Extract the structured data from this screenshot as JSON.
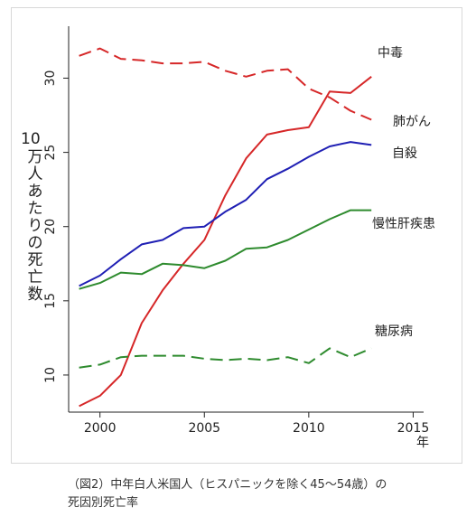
{
  "chart_data": {
    "type": "line",
    "xlabel": "年",
    "ylabel_top": "10",
    "ylabel": "万人あたりの死亡数",
    "xlim": [
      1998.5,
      2015.5
    ],
    "ylim": [
      7.5,
      33.5
    ],
    "x_ticks": [
      2000,
      2005,
      2010,
      2015
    ],
    "y_ticks": [
      10,
      15,
      20,
      25,
      30
    ],
    "grid": false,
    "legend": "none",
    "x": [
      1999,
      2000,
      2001,
      2002,
      2003,
      2004,
      2005,
      2006,
      2007,
      2008,
      2009,
      2010,
      2011,
      2012,
      2013
    ],
    "series": [
      {
        "name": "中毒",
        "color": "#d62728",
        "dash": "solid",
        "values": [
          7.9,
          8.6,
          10.0,
          13.5,
          15.7,
          17.5,
          19.1,
          22.1,
          24.6,
          26.2,
          26.5,
          26.7,
          29.1,
          29.0,
          30.1
        ]
      },
      {
        "name": "肺がん",
        "color": "#d62728",
        "dash": "dashed",
        "values": [
          31.5,
          32.0,
          31.3,
          31.2,
          31.0,
          31.0,
          31.1,
          30.5,
          30.1,
          30.5,
          30.6,
          29.3,
          28.7,
          27.8,
          27.2
        ]
      },
      {
        "name": "自殺",
        "color": "#1f1fb4",
        "dash": "solid",
        "values": [
          16.0,
          16.7,
          17.8,
          18.8,
          19.1,
          19.9,
          20.0,
          21.0,
          21.8,
          23.2,
          23.9,
          24.7,
          25.4,
          25.7,
          25.5
        ]
      },
      {
        "name": "慢性肝疾患",
        "color": "#2e8b2e",
        "dash": "solid",
        "values": [
          15.8,
          16.2,
          16.9,
          16.8,
          17.5,
          17.4,
          17.2,
          17.7,
          18.5,
          18.6,
          19.1,
          19.8,
          20.5,
          21.1,
          21.1
        ]
      },
      {
        "name": "糖尿病",
        "color": "#2e8b2e",
        "dash": "dashed",
        "values": [
          10.5,
          10.7,
          11.2,
          11.3,
          11.3,
          11.3,
          11.1,
          11.0,
          11.1,
          11.0,
          11.2,
          10.8,
          11.8,
          11.2,
          11.8
        ]
      }
    ]
  },
  "caption": {
    "line1": "（図2）中年白人米国人（ヒスパニックを除く45〜54歳）の",
    "line2": "死因別死亡率"
  }
}
